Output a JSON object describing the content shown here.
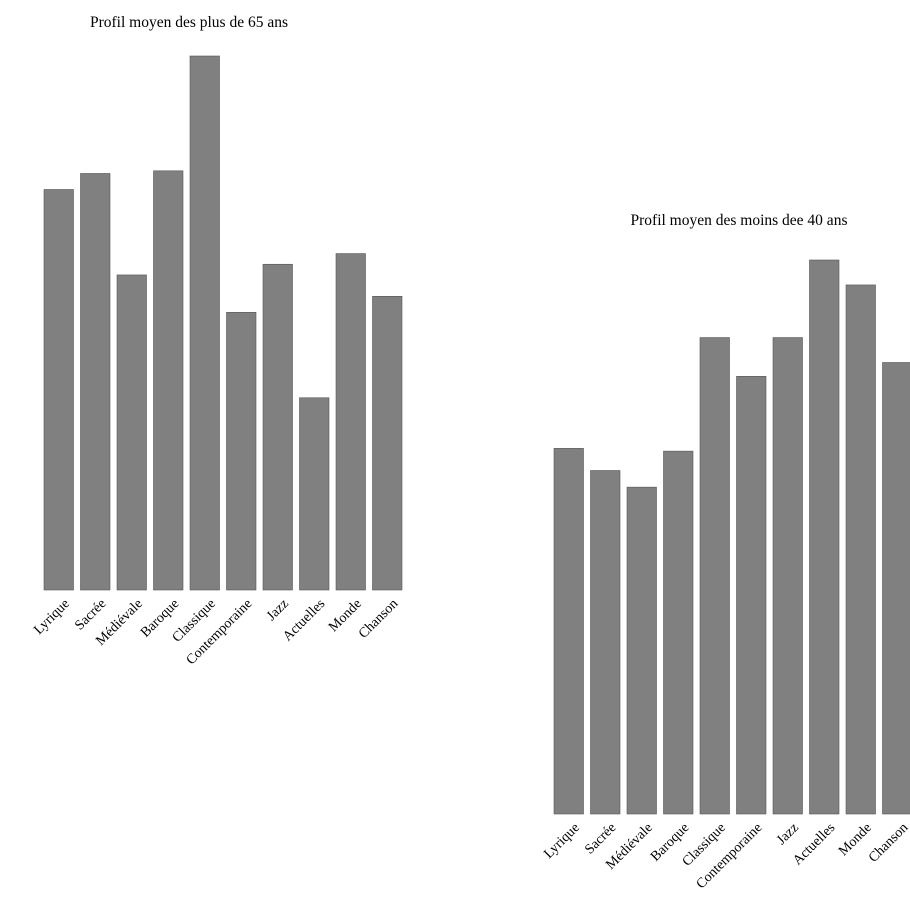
{
  "bar_color": "#808080",
  "chart_data": [
    {
      "type": "bar",
      "title": "Profil moyen des plus de 65 ans",
      "categories": [
        "Lyrique",
        "Sacrée",
        "Médiévale",
        "Baroque",
        "Classique",
        "Contemporaine",
        "Jazz",
        "Actuelles",
        "Monde",
        "Chanson"
      ],
      "values": [
        75,
        78,
        59,
        78.5,
        100,
        52,
        61,
        36,
        63,
        55
      ],
      "ylim": [
        0,
        100
      ],
      "grid": false,
      "legend": "none"
    },
    {
      "type": "bar",
      "title": "Profil moyen des moins dee 40 ans",
      "categories": [
        "Lyrique",
        "Sacrée",
        "Médiévale",
        "Baroque",
        "Classique",
        "Contemporaine",
        "Jazz",
        "Actuelles",
        "Monde",
        "Chanson"
      ],
      "values": [
        66,
        62,
        59,
        65.5,
        86,
        79,
        86,
        100,
        95.5,
        81.5
      ],
      "ylim": [
        0,
        100
      ],
      "grid": false,
      "legend": "none"
    }
  ]
}
